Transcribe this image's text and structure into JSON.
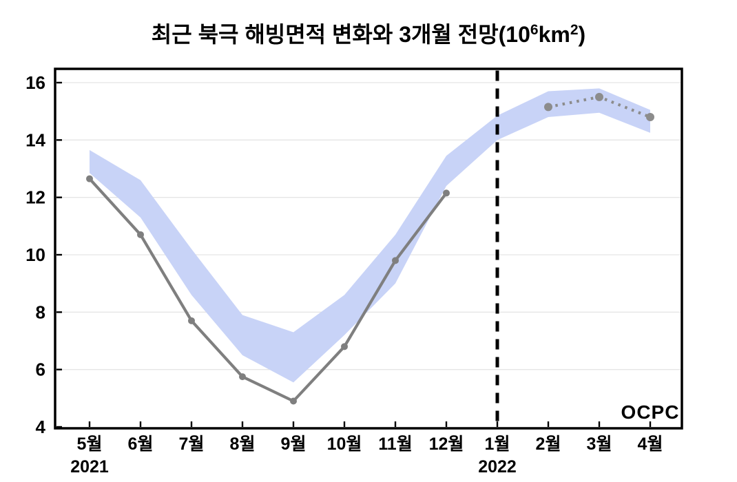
{
  "page": {
    "background": "#ffffff"
  },
  "title": {
    "prefix": "최근 북극 해빙면적 변화와 3개월 전망(10",
    "sup1": "6",
    "mid": "km",
    "sup2": "2",
    "suffix": ")"
  },
  "logo": {
    "text": "OCPC"
  },
  "colors": {
    "band": "#c8d3f7",
    "observed": "#7f7f7f",
    "forecast": "#8c8c8c",
    "divider": "#000000",
    "grid": "#e5e5e5",
    "axis": "#000000",
    "logo_gradient_top": "#1e2e6d",
    "logo_gradient_mid": "#1766b0",
    "logo_gradient_bottom": "#3fbbea"
  },
  "chart_data": {
    "type": "line",
    "title": "최근 북극 해빙면적 변화와 3개월 전망(10⁶km²)",
    "categories": [
      "5월",
      "6월",
      "7월",
      "8월",
      "9월",
      "10월",
      "11월",
      "12월",
      "1월",
      "2월",
      "3월",
      "4월"
    ],
    "x_secondary_labels": [
      {
        "index": 0,
        "label": "2021"
      },
      {
        "index": 8,
        "label": "2022"
      }
    ],
    "ylim": [
      4,
      16
    ],
    "yticks": [
      4,
      6,
      8,
      10,
      12,
      14,
      16
    ],
    "grid": "horizontal",
    "legend": "none",
    "series": [
      {
        "name": "observed-2021",
        "type": "line",
        "style": "solid",
        "marker": "circle",
        "x_indices": [
          0,
          1,
          2,
          3,
          4,
          5,
          6,
          7
        ],
        "values": [
          12.65,
          10.7,
          7.7,
          5.75,
          4.9,
          6.8,
          9.8,
          12.15
        ]
      },
      {
        "name": "forecast-3month",
        "type": "line",
        "style": "dotted",
        "marker": "circle",
        "x_indices": [
          9,
          10,
          11
        ],
        "values": [
          15.15,
          15.5,
          14.8
        ]
      },
      {
        "name": "prediction-range-band",
        "type": "band",
        "x_indices": [
          0,
          1,
          2,
          3,
          4,
          5,
          6,
          7,
          8,
          9,
          10,
          11
        ],
        "upper": [
          13.65,
          12.6,
          10.2,
          7.9,
          7.3,
          8.6,
          10.7,
          13.45,
          14.85,
          15.7,
          15.8,
          15.05
        ],
        "lower": [
          12.85,
          11.3,
          8.6,
          6.5,
          5.55,
          7.2,
          9.0,
          12.4,
          14.0,
          14.8,
          14.95,
          14.25
        ]
      }
    ],
    "divider": {
      "x_index": 8,
      "style": "dashed"
    }
  }
}
